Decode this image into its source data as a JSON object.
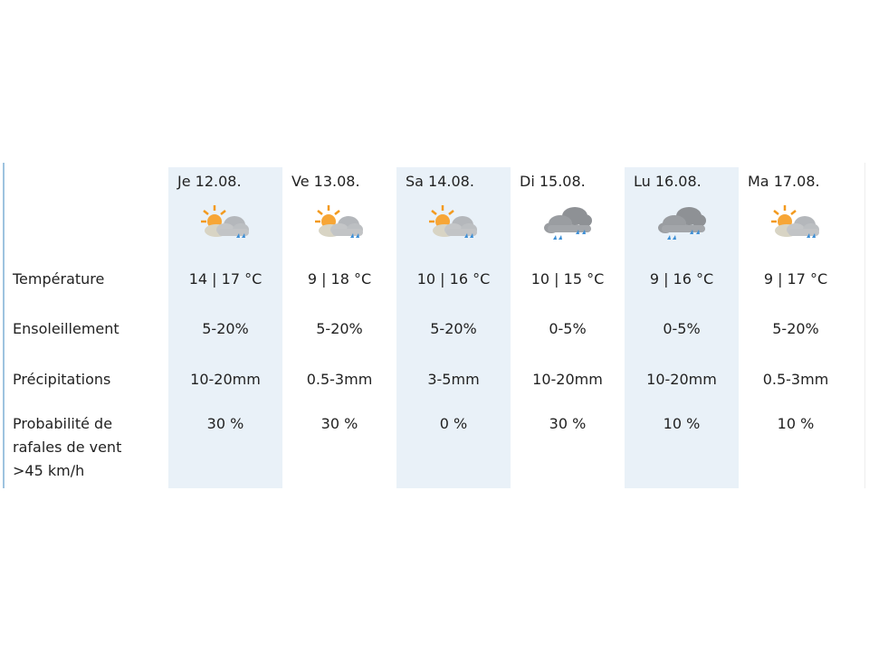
{
  "labels": {
    "temperature": "Température",
    "sunshine": "Ensoleillement",
    "precipitation": "Précipitations",
    "gusts": [
      "Probabilité de",
      "rafales de vent",
      ">45 km/h"
    ]
  },
  "days": [
    {
      "date": "Je 12.08.",
      "icon": "sun-cloud-rain-icon",
      "temp": "14 | 17 °C",
      "sun": "5-20%",
      "precip": "10-20mm",
      "gust": "30 %"
    },
    {
      "date": "Ve 13.08.",
      "icon": "sun-cloud-rain-icon",
      "temp": "9 | 18 °C",
      "sun": "5-20%",
      "precip": "0.5-3mm",
      "gust": "30 %"
    },
    {
      "date": "Sa 14.08.",
      "icon": "sun-cloud-rain-icon",
      "temp": "10 | 16 °C",
      "sun": "5-20%",
      "precip": "3-5mm",
      "gust": "0 %"
    },
    {
      "date": "Di 15.08.",
      "icon": "heavy-rain-cloud-icon",
      "temp": "10 | 15 °C",
      "sun": "0-5%",
      "precip": "10-20mm",
      "gust": "30 %"
    },
    {
      "date": "Lu 16.08.",
      "icon": "heavy-rain-cloud-icon",
      "temp": "9 | 16 °C",
      "sun": "0-5%",
      "precip": "10-20mm",
      "gust": "10 %"
    },
    {
      "date": "Ma 17.08.",
      "icon": "sun-cloud-rain-icon",
      "temp": "9 | 17 °C",
      "sun": "5-20%",
      "precip": "0.5-3mm",
      "gust": "10 %"
    }
  ],
  "colors": {
    "shade": "#e9f1f8",
    "sun": "#f39a1e",
    "rain": "#3d8fd6",
    "cloud": "#a9adb2"
  }
}
